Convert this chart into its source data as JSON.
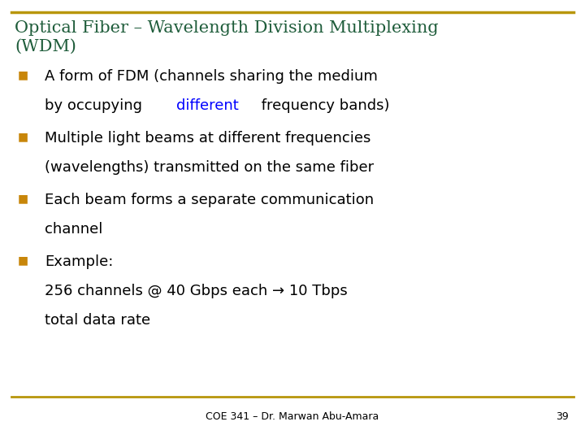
{
  "title_line1": "Optical Fiber – Wavelength Division Multiplexing",
  "title_line2": "(WDM)",
  "title_color": "#1E5C3A",
  "title_fontsize": 15,
  "background_color": "#FFFFFF",
  "border_color": "#B8960C",
  "footer_text": "COE 341 – Dr. Marwan Abu-Amara",
  "footer_page": "39",
  "footer_fontsize": 9,
  "bullet_color": "#C8860A",
  "bullet_char": "■",
  "bullet_fontsize": 10,
  "body_fontsize": 13,
  "body_color": "#000000",
  "highlight_color": "#0000FF",
  "bullets": [
    {
      "lines": [
        [
          {
            "text": "A form of FDM (channels sharing the medium",
            "color": "#000000"
          }
        ],
        [
          {
            "text": "by occupying ",
            "color": "#000000"
          },
          {
            "text": "different",
            "color": "#0000FF"
          },
          {
            "text": " frequency bands)",
            "color": "#000000"
          }
        ]
      ]
    },
    {
      "lines": [
        [
          {
            "text": "Multiple light beams at different frequencies",
            "color": "#000000"
          }
        ],
        [
          {
            "text": "(wavelengths) transmitted on the same fiber",
            "color": "#000000"
          }
        ]
      ]
    },
    {
      "lines": [
        [
          {
            "text": "Each beam forms a separate communication",
            "color": "#000000"
          }
        ],
        [
          {
            "text": "channel",
            "color": "#000000"
          }
        ]
      ]
    },
    {
      "lines": [
        [
          {
            "text": "Example:",
            "color": "#000000"
          }
        ],
        [
          {
            "text": "256 channels @ 40 Gbps each → 10 Tbps",
            "color": "#000000"
          }
        ],
        [
          {
            "text": "total data rate",
            "color": "#000000"
          }
        ]
      ]
    }
  ]
}
